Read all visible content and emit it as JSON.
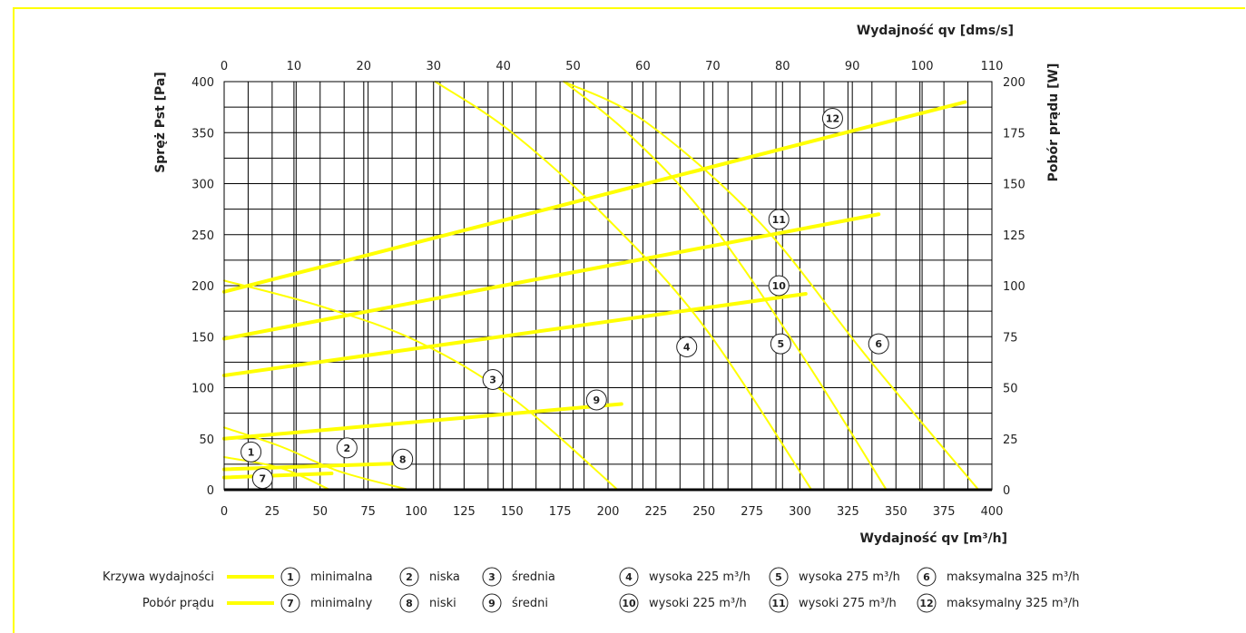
{
  "chart_data": {
    "type": "line",
    "top_xlabel": "Wydajność qv [dms/s]",
    "xlabel": "Wydajność qv [m³/h]",
    "ylabel": "Spręż Pst [Pa]",
    "y2label": "Pobór prądu [W]",
    "xlim": [
      0,
      400
    ],
    "x2lim": [
      0,
      110
    ],
    "ylim": [
      0,
      400
    ],
    "y2lim": [
      0,
      200
    ],
    "grid": true,
    "x_ticks": [
      0,
      25,
      50,
      75,
      100,
      125,
      150,
      175,
      200,
      225,
      250,
      275,
      300,
      325,
      350,
      375,
      400
    ],
    "x2_ticks": [
      0,
      10,
      20,
      30,
      40,
      50,
      60,
      70,
      80,
      90,
      100,
      110
    ],
    "y_ticks": [
      0,
      50,
      100,
      150,
      200,
      250,
      300,
      350,
      400
    ],
    "y2_ticks": [
      0,
      25,
      50,
      75,
      100,
      125,
      150,
      175,
      200
    ],
    "color": "#ffff00",
    "series": [
      {
        "marker": "1",
        "group": "pressure",
        "points": [
          [
            0,
            32
          ],
          [
            30,
            21
          ],
          [
            55,
            0
          ]
        ]
      },
      {
        "marker": "2",
        "group": "pressure",
        "points": [
          [
            0,
            61
          ],
          [
            30,
            42
          ],
          [
            60,
            18
          ],
          [
            96,
            0
          ]
        ]
      },
      {
        "marker": "3",
        "group": "pressure",
        "points": [
          [
            0,
            205
          ],
          [
            50,
            180
          ],
          [
            100,
            146
          ],
          [
            150,
            90
          ],
          [
            205,
            0
          ]
        ]
      },
      {
        "marker": "4",
        "group": "pressure",
        "points": [
          [
            110,
            400
          ],
          [
            150,
            350
          ],
          [
            200,
            265
          ],
          [
            250,
            160
          ],
          [
            306,
            0
          ]
        ]
      },
      {
        "marker": "5",
        "group": "pressure",
        "points": [
          [
            177,
            400
          ],
          [
            210,
            350
          ],
          [
            250,
            270
          ],
          [
            300,
            135
          ],
          [
            345,
            0
          ]
        ]
      },
      {
        "marker": "6",
        "group": "pressure",
        "points": [
          [
            177,
            400
          ],
          [
            220,
            360
          ],
          [
            280,
            260
          ],
          [
            335,
            130
          ],
          [
            393,
            0
          ]
        ]
      },
      {
        "marker": "7",
        "group": "power",
        "points": [
          [
            0,
            6
          ],
          [
            56,
            8
          ]
        ]
      },
      {
        "marker": "8",
        "group": "power",
        "points": [
          [
            0,
            10
          ],
          [
            94,
            13
          ]
        ]
      },
      {
        "marker": "9",
        "group": "power",
        "points": [
          [
            0,
            25
          ],
          [
            207,
            42
          ]
        ]
      },
      {
        "marker": "10",
        "group": "power",
        "points": [
          [
            0,
            56
          ],
          [
            303,
            96
          ]
        ]
      },
      {
        "marker": "11",
        "group": "power",
        "points": [
          [
            0,
            74
          ],
          [
            341,
            135
          ]
        ]
      },
      {
        "marker": "12",
        "group": "power",
        "points": [
          [
            0,
            97
          ],
          [
            386,
            190
          ]
        ]
      }
    ],
    "labels": [
      {
        "text": "1",
        "x": 14,
        "y": 37
      },
      {
        "text": "2",
        "x": 64,
        "y": 41
      },
      {
        "text": "3",
        "x": 140,
        "y": 108
      },
      {
        "text": "4",
        "x": 241,
        "y": 140
      },
      {
        "text": "5",
        "x": 290,
        "y": 143
      },
      {
        "text": "6",
        "x": 341,
        "y": 143
      },
      {
        "text": "7",
        "x": 20,
        "y": 11
      },
      {
        "text": "8",
        "x": 93,
        "y": 30
      },
      {
        "text": "9",
        "x": 194,
        "y": 88
      },
      {
        "text": "10",
        "x": 289,
        "y": 200
      },
      {
        "text": "11",
        "x": 289,
        "y": 265
      },
      {
        "text": "12",
        "x": 317,
        "y": 364
      }
    ]
  },
  "legend": {
    "row1": {
      "label": "Krzywa wydajności",
      "items": [
        {
          "marker": "1",
          "text": "minimalna"
        },
        {
          "marker": "2",
          "text": "niska"
        },
        {
          "marker": "3",
          "text": "średnia"
        },
        {
          "marker": "4",
          "text": "wysoka 225 m³/h"
        },
        {
          "marker": "5",
          "text": "wysoka 275 m³/h"
        },
        {
          "marker": "6",
          "text": "maksymalna 325 m³/h"
        }
      ]
    },
    "row2": {
      "label": "Pobór prądu",
      "items": [
        {
          "marker": "7",
          "text": "minimalny"
        },
        {
          "marker": "8",
          "text": "niski"
        },
        {
          "marker": "9",
          "text": "średni"
        },
        {
          "marker": "10",
          "text": "wysoki 225 m³/h"
        },
        {
          "marker": "11",
          "text": "wysoki 275 m³/h"
        },
        {
          "marker": "12",
          "text": "maksymalny 325 m³/h"
        }
      ]
    }
  }
}
